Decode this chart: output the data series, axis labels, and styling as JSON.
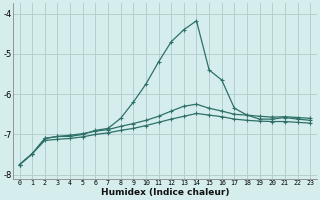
{
  "xlabel": "Humidex (Indice chaleur)",
  "background_color": "#d5eeed",
  "grid_color": "#b2d0cd",
  "line_color": "#2e7068",
  "xlim": [
    0,
    23
  ],
  "ylim": [
    -8.1,
    -3.75
  ],
  "xticks": [
    0,
    1,
    2,
    3,
    4,
    5,
    6,
    7,
    8,
    9,
    10,
    11,
    12,
    13,
    14,
    15,
    16,
    17,
    18,
    19,
    20,
    21,
    22,
    23
  ],
  "yticks": [
    -8,
    -7,
    -6,
    -5,
    -4
  ],
  "spike_y": [
    -7.75,
    -7.48,
    -7.1,
    -7.05,
    -7.05,
    -7.0,
    -6.9,
    -6.85,
    -6.6,
    -6.2,
    -5.75,
    -5.2,
    -4.7,
    -4.4,
    -4.18,
    -5.4,
    -5.65,
    -6.35,
    -6.52,
    -6.62,
    -6.62,
    -6.58,
    -6.62,
    -6.65
  ],
  "upper_y": [
    -7.75,
    -7.48,
    -7.1,
    -7.05,
    -7.02,
    -6.98,
    -6.92,
    -6.88,
    -6.8,
    -6.73,
    -6.65,
    -6.55,
    -6.42,
    -6.3,
    -6.25,
    -6.35,
    -6.42,
    -6.5,
    -6.52,
    -6.55,
    -6.57,
    -6.56,
    -6.58,
    -6.6
  ],
  "lower_y": [
    -7.75,
    -7.48,
    -7.15,
    -7.12,
    -7.1,
    -7.06,
    -7.0,
    -6.96,
    -6.9,
    -6.85,
    -6.78,
    -6.7,
    -6.62,
    -6.55,
    -6.48,
    -6.52,
    -6.56,
    -6.62,
    -6.65,
    -6.67,
    -6.68,
    -6.68,
    -6.7,
    -6.72
  ]
}
